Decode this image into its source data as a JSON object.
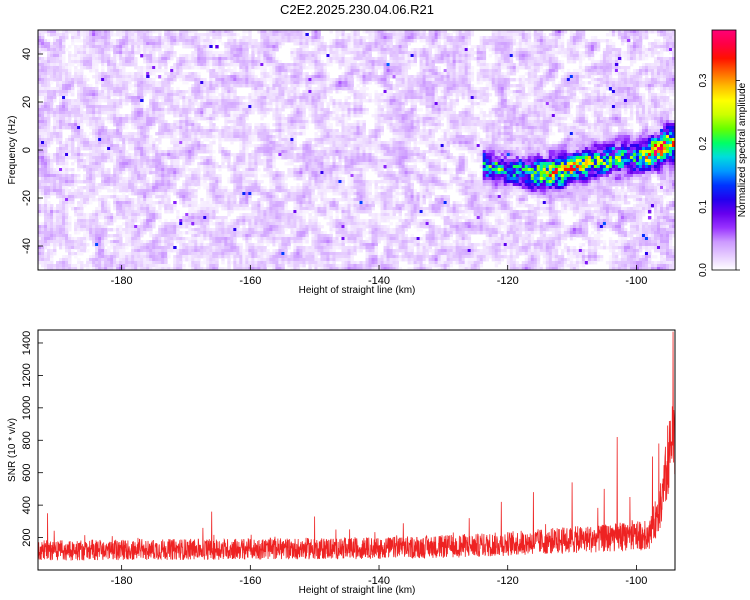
{
  "title": "C2E2.2025.230.04.06.R21",
  "chart_data": [
    {
      "type": "heatmap",
      "xlabel": "Height of straight line (km)",
      "ylabel": "Frequency (Hz)",
      "xlim": [
        -193,
        -94
      ],
      "ylim": [
        -50,
        50
      ],
      "x_ticks": [
        -180,
        -160,
        -140,
        -120,
        -100
      ],
      "y_ticks": [
        -40,
        -20,
        0,
        20,
        40
      ],
      "colorbar": {
        "label": "Normalized spectral amplitude",
        "range": [
          0,
          0.38
        ],
        "ticks": [
          0.0,
          0.1,
          0.2,
          0.3
        ],
        "tick_labels": [
          "0.0",
          "0.1",
          "0.2",
          "0.3"
        ],
        "colors": [
          "#ffffff",
          "#e6ccff",
          "#cc99ff",
          "#9933ff",
          "#6600ee",
          "#2200ee",
          "#0033ff",
          "#0099ff",
          "#00dddd",
          "#00ff66",
          "#66ff00",
          "#ccff00",
          "#ffff00",
          "#ffbb00",
          "#ff6600",
          "#ff1100",
          "#ff0044",
          "#ff0077"
        ]
      },
      "background_noise_level": 0.04,
      "signal_track": [
        {
          "x": -124,
          "f": -6,
          "amp": 0.16
        },
        {
          "x": -121,
          "f": -8,
          "amp": 0.18
        },
        {
          "x": -118,
          "f": -9,
          "amp": 0.2
        },
        {
          "x": -115,
          "f": -10,
          "amp": 0.24
        },
        {
          "x": -112,
          "f": -9,
          "amp": 0.3
        },
        {
          "x": -109,
          "f": -7,
          "amp": 0.26
        },
        {
          "x": -106,
          "f": -5,
          "amp": 0.22
        },
        {
          "x": -103,
          "f": -4,
          "amp": 0.2
        },
        {
          "x": -100,
          "f": -3,
          "amp": 0.18
        },
        {
          "x": -98,
          "f": -2,
          "amp": 0.3
        },
        {
          "x": -96,
          "f": 1,
          "amp": 0.36
        },
        {
          "x": -95,
          "f": 3,
          "amp": 0.3
        }
      ]
    },
    {
      "type": "line",
      "xlabel": "Height of straight line (km)",
      "ylabel": "SNR (10 * v/v)",
      "xlim": [
        -193,
        -94
      ],
      "ylim": [
        0,
        1480
      ],
      "x_ticks": [
        -180,
        -160,
        -140,
        -120,
        -100
      ],
      "y_ticks": [
        200,
        400,
        600,
        800,
        1000,
        1200,
        1400
      ],
      "series": [
        {
          "color": "#ee2222",
          "baseline": [
            {
              "x": -193,
              "y": 120
            },
            {
              "x": -180,
              "y": 125
            },
            {
              "x": -160,
              "y": 130
            },
            {
              "x": -140,
              "y": 135
            },
            {
              "x": -125,
              "y": 150
            },
            {
              "x": -115,
              "y": 175
            },
            {
              "x": -105,
              "y": 195
            },
            {
              "x": -98,
              "y": 215
            },
            {
              "x": -96,
              "y": 420
            },
            {
              "x": -94.5,
              "y": 800
            }
          ],
          "noise_amplitude": 90,
          "peaks": [
            {
              "x": -191.5,
              "y": 350
            },
            {
              "x": -166,
              "y": 360
            },
            {
              "x": -150,
              "y": 330
            },
            {
              "x": -126,
              "y": 320
            },
            {
              "x": -121,
              "y": 420
            },
            {
              "x": -116,
              "y": 480
            },
            {
              "x": -110,
              "y": 540
            },
            {
              "x": -105,
              "y": 500
            },
            {
              "x": -103,
              "y": 820
            },
            {
              "x": -101,
              "y": 450
            },
            {
              "x": -97.5,
              "y": 700
            },
            {
              "x": -96.5,
              "y": 780
            },
            {
              "x": -95.5,
              "y": 760
            },
            {
              "x": -94.3,
              "y": 1470
            }
          ]
        }
      ]
    }
  ]
}
